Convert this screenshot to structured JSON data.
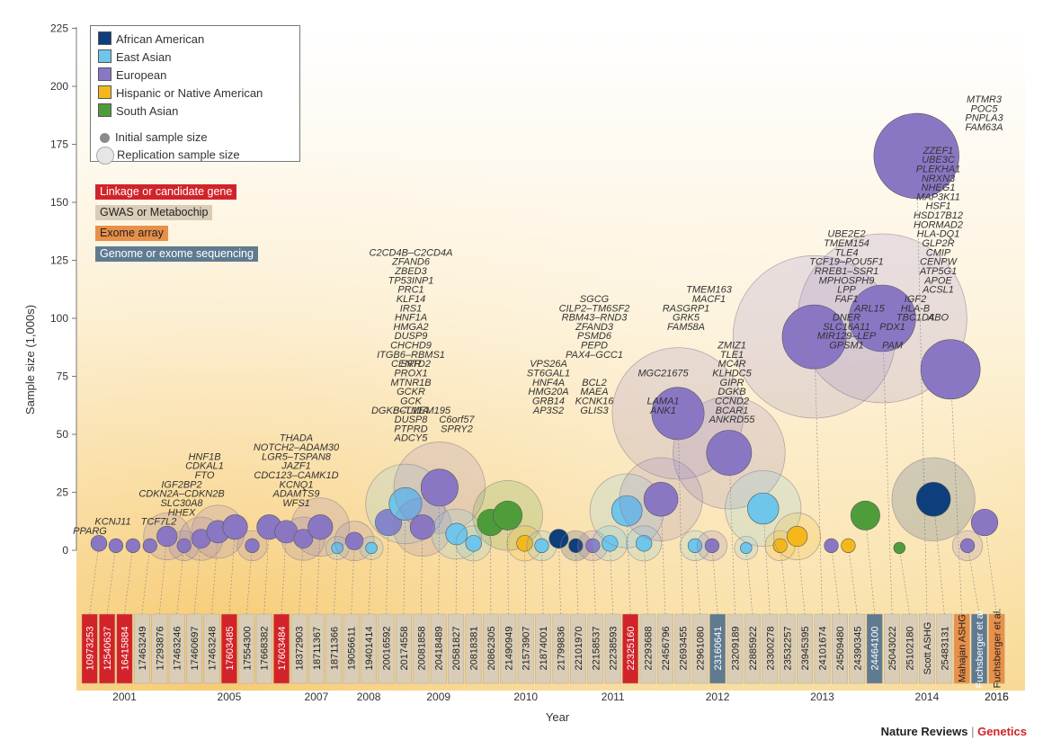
{
  "chart_data": {
    "type": "scatter",
    "ylabel": "Sample size (1,000s)",
    "xlabel": "Year",
    "ylim": [
      -3,
      225
    ],
    "yticks": [
      0,
      25,
      50,
      75,
      100,
      125,
      150,
      175,
      200,
      225
    ],
    "year_labels": [
      "2001",
      "2005",
      "2007",
      "2008",
      "2009",
      "2010",
      "2011",
      "2012",
      "2013",
      "2014",
      "2015",
      "2016"
    ],
    "legend": {
      "ancestry": [
        {
          "name": "African American",
          "color": "#0e3f7c"
        },
        {
          "name": "East Asian",
          "color": "#6ec6ea"
        },
        {
          "name": "European",
          "color": "#8a77c4"
        },
        {
          "name": "Hispanic or Native American",
          "color": "#f5b81c"
        },
        {
          "name": "South Asian",
          "color": "#4f9d3a"
        }
      ],
      "initial_label": "Initial sample size",
      "replication_label": "Replication sample size",
      "methods": [
        {
          "name": "Linkage or candidate gene",
          "color": "#d2232a",
          "text_color": "#ffffff"
        },
        {
          "name": "GWAS or Metabochip",
          "color": "#d9cdb7",
          "text_color": "#222222"
        },
        {
          "name": "Exome array",
          "color": "#e8904a",
          "text_color": "#222222"
        },
        {
          "name": "Genome or exome sequencing",
          "color": "#5f7b91",
          "text_color": "#ffffff"
        }
      ]
    },
    "studies": [
      {
        "id": "10973253",
        "method": "linkage",
        "initial": 3,
        "replication": 0,
        "ancestry": "european"
      },
      {
        "id": "12540637",
        "method": "linkage",
        "initial": 2,
        "replication": 0,
        "ancestry": "european"
      },
      {
        "id": "16415884",
        "method": "linkage",
        "initial": 2,
        "replication": 0,
        "ancestry": "european"
      },
      {
        "id": "17463249",
        "method": "gwas",
        "initial": 2,
        "replication": 0,
        "ancestry": "european"
      },
      {
        "id": "17293876",
        "method": "gwas",
        "initial": 6,
        "replication": 6,
        "ancestry": "european"
      },
      {
        "id": "17463246",
        "method": "gwas",
        "initial": 2,
        "replication": 2,
        "ancestry": "european"
      },
      {
        "id": "17460697",
        "method": "gwas",
        "initial": 5,
        "replication": 5,
        "ancestry": "european"
      },
      {
        "id": "17463248",
        "method": "gwas",
        "initial": 8,
        "replication": 8,
        "ancestry": "european"
      },
      {
        "id": "17603485",
        "method": "linkage",
        "initial": 10,
        "replication": 0,
        "ancestry": "european"
      },
      {
        "id": "17554300",
        "method": "gwas",
        "initial": 2,
        "replication": 2,
        "ancestry": "european"
      },
      {
        "id": "17668382",
        "method": "gwas",
        "initial": 10,
        "replication": 0,
        "ancestry": "european"
      },
      {
        "id": "17603484",
        "method": "linkage",
        "initial": 8,
        "replication": 0,
        "ancestry": "european"
      },
      {
        "id": "18372903",
        "method": "gwas",
        "initial": 5,
        "replication": 5,
        "ancestry": "european"
      },
      {
        "id": "18711367",
        "method": "gwas",
        "initial": 10,
        "replication": 10,
        "ancestry": "european"
      },
      {
        "id": "18711366",
        "method": "gwas",
        "initial": 1,
        "replication": 1,
        "ancestry": "east_asian"
      },
      {
        "id": "19056611",
        "method": "gwas",
        "initial": 4,
        "replication": 4,
        "ancestry": "european"
      },
      {
        "id": "19401414",
        "method": "gwas",
        "initial": 1,
        "replication": 1,
        "ancestry": "east_asian"
      },
      {
        "id": "20016592",
        "method": "gwas",
        "initial": 12,
        "replication": 0,
        "ancestry": "european"
      },
      {
        "id": "20174558",
        "method": "gwas",
        "initial": 20,
        "replication": 20,
        "ancestry": "east_asian"
      },
      {
        "id": "20081858",
        "method": "gwas",
        "initial": 10,
        "replication": 10,
        "ancestry": "european"
      },
      {
        "id": "20418489",
        "method": "gwas",
        "initial": 27,
        "replication": 27,
        "ancestry": "european"
      },
      {
        "id": "20581827",
        "method": "gwas",
        "initial": 7,
        "replication": 7,
        "ancestry": "east_asian"
      },
      {
        "id": "20818381",
        "method": "gwas",
        "initial": 3,
        "replication": 3,
        "ancestry": "east_asian"
      },
      {
        "id": "20862305",
        "method": "gwas",
        "initial": 12,
        "replication": 0,
        "ancestry": "south_asian"
      },
      {
        "id": "21490949",
        "method": "gwas",
        "initial": 15,
        "replication": 15,
        "ancestry": "south_asian"
      },
      {
        "id": "21573907",
        "method": "gwas",
        "initial": 3,
        "replication": 3,
        "ancestry": "hispanic"
      },
      {
        "id": "21874001",
        "method": "gwas",
        "initial": 2,
        "replication": 2,
        "ancestry": "east_asian"
      },
      {
        "id": "21799836",
        "method": "gwas",
        "initial": 5,
        "replication": 0,
        "ancestry": "african_american"
      },
      {
        "id": "22101970",
        "method": "gwas",
        "initial": 2,
        "replication": 2,
        "ancestry": "african_american"
      },
      {
        "id": "22158537",
        "method": "gwas",
        "initial": 2,
        "replication": 2,
        "ancestry": "european"
      },
      {
        "id": "22238593",
        "method": "gwas",
        "initial": 3,
        "replication": 3,
        "ancestry": "east_asian"
      },
      {
        "id": "22325160",
        "method": "linkage",
        "initial": 17,
        "replication": 17,
        "ancestry": "east_asian"
      },
      {
        "id": "22293688",
        "method": "gwas",
        "initial": 3,
        "replication": 3,
        "ancestry": "east_asian"
      },
      {
        "id": "22456796",
        "method": "gwas",
        "initial": 22,
        "replication": 22,
        "ancestry": "european"
      },
      {
        "id": "22693455",
        "method": "gwas",
        "initial": 59,
        "replication": 59,
        "ancestry": "european"
      },
      {
        "id": "22961080",
        "method": "gwas",
        "initial": 2,
        "replication": 2,
        "ancestry": "east_asian"
      },
      {
        "id": "23160641",
        "method": "sequencing",
        "initial": 2,
        "replication": 2,
        "ancestry": "european"
      },
      {
        "id": "23209189",
        "method": "gwas",
        "initial": 42,
        "replication": 42,
        "ancestry": "european"
      },
      {
        "id": "22885922",
        "method": "gwas",
        "initial": 1,
        "replication": 1,
        "ancestry": "east_asian"
      },
      {
        "id": "23300278",
        "method": "gwas",
        "initial": 18,
        "replication": 18,
        "ancestry": "east_asian"
      },
      {
        "id": "23532257",
        "method": "gwas",
        "initial": 2,
        "replication": 2,
        "ancestry": "hispanic"
      },
      {
        "id": "23945395",
        "method": "gwas",
        "initial": 6,
        "replication": 6,
        "ancestry": "hispanic"
      },
      {
        "id": "24101674",
        "method": "gwas",
        "initial": 92,
        "replication": 92,
        "ancestry": "european"
      },
      {
        "id": "24509480",
        "method": "gwas",
        "initial": 2,
        "replication": 0,
        "ancestry": "european"
      },
      {
        "id": "24390345",
        "method": "gwas",
        "initial": 2,
        "replication": 0,
        "ancestry": "hispanic"
      },
      {
        "id": "24464100",
        "method": "sequencing",
        "initial": 15,
        "replication": 0,
        "ancestry": "south_asian"
      },
      {
        "id": "25043022",
        "method": "gwas",
        "initial": 100,
        "replication": 100,
        "ancestry": "european"
      },
      {
        "id": "25102180",
        "method": "gwas",
        "initial": 1,
        "replication": 0,
        "ancestry": "south_asian"
      },
      {
        "id": "Scott ASHG",
        "method": "gwas",
        "initial": 170,
        "replication": 0,
        "ancestry": "european"
      },
      {
        "id": "25483131",
        "method": "gwas",
        "initial": 22,
        "replication": 22,
        "ancestry": "african_american"
      },
      {
        "id": "Mahajan ASHG",
        "method": "exome",
        "initial": 78,
        "replication": 0,
        "ancestry": "european"
      },
      {
        "id": "Fuchsberger et al.",
        "method": "sequencing",
        "initial": 2,
        "replication": 2,
        "ancestry": "european"
      },
      {
        "id": "Fuchsberger et al.",
        "method": "exome",
        "initial": 12,
        "replication": 0,
        "ancestry": "european"
      }
    ],
    "gene_labels": [
      {
        "text": "PPARG",
        "year_col": 0,
        "y": 7
      },
      {
        "text": "KCNJ11",
        "year_col": 1,
        "y": 11
      },
      {
        "text": "TCF7L2",
        "year_col": 3,
        "y": 11
      },
      {
        "text": "HHEX",
        "year_col": 4,
        "y": 15
      },
      {
        "text": "SLC30A8",
        "year_col": 4,
        "y": 19
      },
      {
        "text": "CDKN2A–CDKN2B",
        "year_col": 4,
        "y": 23
      },
      {
        "text": "IGF2BP2",
        "year_col": 4,
        "y": 27
      },
      {
        "text": "FTO",
        "year_col": 5,
        "y": 31
      },
      {
        "text": "CDKAL1",
        "year_col": 5,
        "y": 35
      },
      {
        "text": "HNF1B",
        "year_col": 5,
        "y": 39
      },
      {
        "text": "WFS1",
        "year_col": 9,
        "y": 19
      },
      {
        "text": "ADAMTS9",
        "year_col": 9,
        "y": 23
      },
      {
        "text": "KCNQ1",
        "year_col": 9,
        "y": 27
      },
      {
        "text": "CDC123–CAMK1D",
        "year_col": 9,
        "y": 31
      },
      {
        "text": "JAZF1",
        "year_col": 9,
        "y": 35
      },
      {
        "text": "LGR5–TSPAN8",
        "year_col": 9,
        "y": 39
      },
      {
        "text": "NOTCH2–ADAM30",
        "year_col": 9,
        "y": 43
      },
      {
        "text": "THADA",
        "year_col": 9,
        "y": 47
      },
      {
        "text": "ADCY5",
        "year_col": 14,
        "y": 47
      },
      {
        "text": "PTPRD",
        "year_col": 14,
        "y": 51
      },
      {
        "text": "DUSP8",
        "year_col": 14,
        "y": 55
      },
      {
        "text": "DGKB–TMEM195",
        "year_col": 14,
        "y": 59
      },
      {
        "text": "GCK",
        "year_col": 14,
        "y": 63
      },
      {
        "text": "GCKR",
        "year_col": 14,
        "y": 67
      },
      {
        "text": "MTNR1B",
        "year_col": 14,
        "y": 71
      },
      {
        "text": "PROX1",
        "year_col": 14,
        "y": 75
      },
      {
        "text": "SRR",
        "year_col": 14,
        "y": 79
      },
      {
        "text": "ITGB6–RBMS1",
        "year_col": 14,
        "y": 83
      },
      {
        "text": "CHCHD9",
        "year_col": 14,
        "y": 87
      },
      {
        "text": "DUSP9",
        "year_col": 14,
        "y": 91
      },
      {
        "text": "HMGA2",
        "year_col": 14,
        "y": 95
      },
      {
        "text": "HNF1A",
        "year_col": 14,
        "y": 99
      },
      {
        "text": "IRS1",
        "year_col": 14,
        "y": 103
      },
      {
        "text": "KLF14",
        "year_col": 14,
        "y": 107
      },
      {
        "text": "PRC1",
        "year_col": 14,
        "y": 111
      },
      {
        "text": "TP53INP1",
        "year_col": 14,
        "y": 115
      },
      {
        "text": "ZBED3",
        "year_col": 14,
        "y": 119
      },
      {
        "text": "ZFAND6",
        "year_col": 14,
        "y": 123
      },
      {
        "text": "C2CD4B–C2CD4A",
        "year_col": 14,
        "y": 127
      },
      {
        "text": "BCL11A",
        "year_col": 14,
        "y": 59
      },
      {
        "text": "CENTD2",
        "year_col": 14,
        "y": 79
      },
      {
        "text": "SPRY2",
        "year_col": 16,
        "y": 51
      },
      {
        "text": "C6orf57",
        "year_col": 16,
        "y": 55
      },
      {
        "text": "AP3S2",
        "year_col": 20,
        "y": 59
      },
      {
        "text": "GRB14",
        "year_col": 20,
        "y": 63
      },
      {
        "text": "HMG20A",
        "year_col": 20,
        "y": 67
      },
      {
        "text": "HNF4A",
        "year_col": 20,
        "y": 71
      },
      {
        "text": "ST6GAL1",
        "year_col": 20,
        "y": 75
      },
      {
        "text": "VPS26A",
        "year_col": 20,
        "y": 79
      },
      {
        "text": "GLIS3",
        "year_col": 22,
        "y": 59
      },
      {
        "text": "KCNK16",
        "year_col": 22,
        "y": 63
      },
      {
        "text": "MAEA",
        "year_col": 22,
        "y": 67
      },
      {
        "text": "BCL2",
        "year_col": 22,
        "y": 71
      },
      {
        "text": "PAX4–GCC1",
        "year_col": 22,
        "y": 83
      },
      {
        "text": "PEPD",
        "year_col": 22,
        "y": 87
      },
      {
        "text": "PSMD6",
        "year_col": 22,
        "y": 91
      },
      {
        "text": "ZFAND3",
        "year_col": 22,
        "y": 95
      },
      {
        "text": "RBM43–RND3",
        "year_col": 22,
        "y": 99
      },
      {
        "text": "CILP2–TM6SF2",
        "year_col": 22,
        "y": 103
      },
      {
        "text": "SGCG",
        "year_col": 22,
        "y": 107
      },
      {
        "text": "ANK1",
        "year_col": 25,
        "y": 59
      },
      {
        "text": "LAMA1",
        "year_col": 25,
        "y": 63
      },
      {
        "text": "MGC21675",
        "year_col": 25,
        "y": 75
      },
      {
        "text": "FAM58A",
        "year_col": 26,
        "y": 95
      },
      {
        "text": "GRK5",
        "year_col": 26,
        "y": 99
      },
      {
        "text": "RASGRP1",
        "year_col": 26,
        "y": 103
      },
      {
        "text": "MACF1",
        "year_col": 27,
        "y": 107
      },
      {
        "text": "TMEM163",
        "year_col": 27,
        "y": 111
      },
      {
        "text": "ANKRD55",
        "year_col": 28,
        "y": 55
      },
      {
        "text": "BCAR1",
        "year_col": 28,
        "y": 59
      },
      {
        "text": "CCND2",
        "year_col": 28,
        "y": 63
      },
      {
        "text": "DGKB",
        "year_col": 28,
        "y": 67
      },
      {
        "text": "GIPR",
        "year_col": 28,
        "y": 71
      },
      {
        "text": "KLHDC5",
        "year_col": 28,
        "y": 75
      },
      {
        "text": "MC4R",
        "year_col": 28,
        "y": 79
      },
      {
        "text": "TLE1",
        "year_col": 28,
        "y": 83
      },
      {
        "text": "ZMIZ1",
        "year_col": 28,
        "y": 87
      },
      {
        "text": "GPSM1",
        "year_col": 33,
        "y": 87
      },
      {
        "text": "MIR129–LEP",
        "year_col": 33,
        "y": 91
      },
      {
        "text": "SLC16A11",
        "year_col": 33,
        "y": 95
      },
      {
        "text": "DNER",
        "year_col": 33,
        "y": 99
      },
      {
        "text": "FAF1",
        "year_col": 33,
        "y": 107
      },
      {
        "text": "LPP",
        "year_col": 33,
        "y": 111
      },
      {
        "text": "MPHOSPH9",
        "year_col": 33,
        "y": 115
      },
      {
        "text": "RREB1–SSR1",
        "year_col": 33,
        "y": 119
      },
      {
        "text": "TCF19–POU5F1",
        "year_col": 33,
        "y": 123
      },
      {
        "text": "TLE4",
        "year_col": 33,
        "y": 127
      },
      {
        "text": "TMEM154",
        "year_col": 33,
        "y": 131
      },
      {
        "text": "UBE2E2",
        "year_col": 33,
        "y": 135
      },
      {
        "text": "ARL15",
        "year_col": 34,
        "y": 103
      },
      {
        "text": "PAM",
        "year_col": 35,
        "y": 87
      },
      {
        "text": "PDX1",
        "year_col": 35,
        "y": 95
      },
      {
        "text": "TBC1D4",
        "year_col": 36,
        "y": 99
      },
      {
        "text": "IGF2",
        "year_col": 36,
        "y": 107
      },
      {
        "text": "HLA-B",
        "year_col": 36,
        "y": 103
      },
      {
        "text": "ABO",
        "year_col": 37,
        "y": 99
      },
      {
        "text": "ACSL1",
        "year_col": 37,
        "y": 111
      },
      {
        "text": "APOE",
        "year_col": 37,
        "y": 115
      },
      {
        "text": "ATP5G1",
        "year_col": 37,
        "y": 119
      },
      {
        "text": "CENPW",
        "year_col": 37,
        "y": 123
      },
      {
        "text": "CMIP",
        "year_col": 37,
        "y": 127
      },
      {
        "text": "GLP2R",
        "year_col": 37,
        "y": 131
      },
      {
        "text": "HLA-DQ1",
        "year_col": 37,
        "y": 135
      },
      {
        "text": "HORMAD2",
        "year_col": 37,
        "y": 139
      },
      {
        "text": "HSD17B12",
        "year_col": 37,
        "y": 143
      },
      {
        "text": "HSF1",
        "year_col": 37,
        "y": 147
      },
      {
        "text": "MAP3K11",
        "year_col": 37,
        "y": 151
      },
      {
        "text": "NHEG1",
        "year_col": 37,
        "y": 155
      },
      {
        "text": "NRXN3",
        "year_col": 37,
        "y": 159
      },
      {
        "text": "PLEKHA1",
        "year_col": 37,
        "y": 163
      },
      {
        "text": "UBE3C",
        "year_col": 37,
        "y": 167
      },
      {
        "text": "ZZEF1",
        "year_col": 37,
        "y": 171
      },
      {
        "text": "FAM63A",
        "year_col": 39,
        "y": 181
      },
      {
        "text": "PNPLA3",
        "year_col": 39,
        "y": 185
      },
      {
        "text": "POC5",
        "year_col": 39,
        "y": 189
      },
      {
        "text": "MTMR3",
        "year_col": 39,
        "y": 193
      }
    ]
  },
  "footer": {
    "journal": "Nature Reviews",
    "separator": "|",
    "section": "Genetics"
  }
}
